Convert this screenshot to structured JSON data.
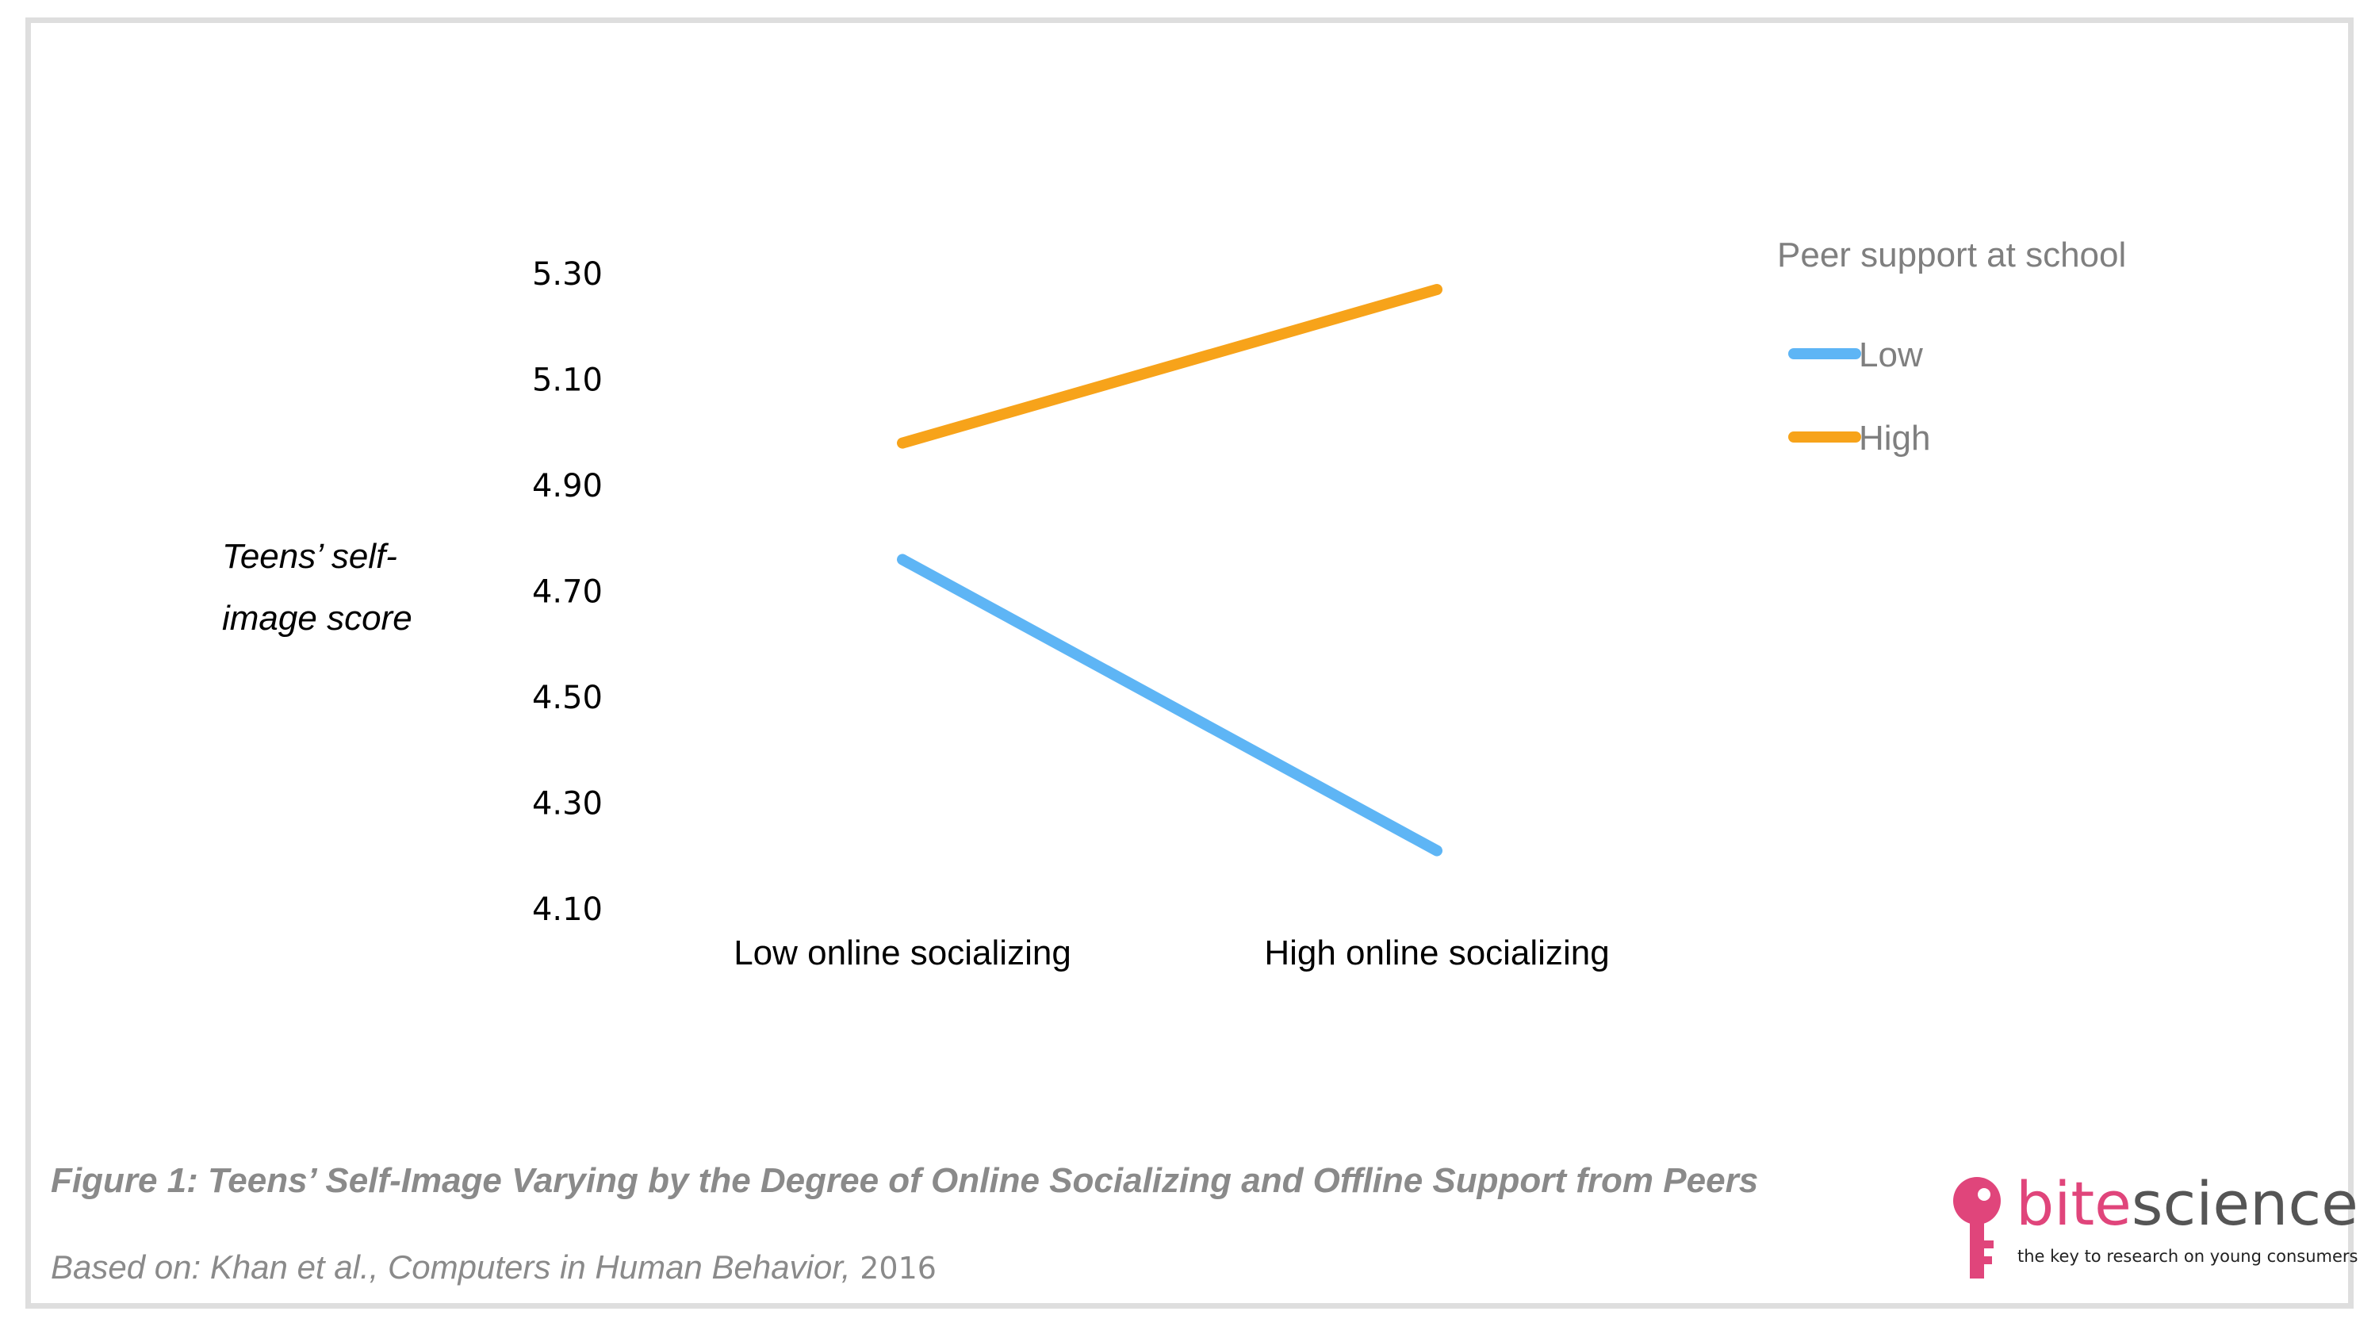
{
  "chart_data": {
    "type": "line",
    "categories": [
      "Low online socializing",
      "High online socializing"
    ],
    "series": [
      {
        "name": "Low",
        "values": [
          4.76,
          4.21
        ],
        "color": "#5eb5f5"
      },
      {
        "name": "High",
        "values": [
          4.98,
          5.27
        ],
        "color": "#f7a31a"
      }
    ],
    "ylabel_lines": [
      "Teens’ self-",
      "image score"
    ],
    "yticks": [
      "4.10",
      "4.30",
      "4.50",
      "4.70",
      "4.90",
      "5.10",
      "5.30"
    ],
    "ylim": [
      4.1,
      5.3
    ],
    "grid": false,
    "legend": {
      "title": "Peer support at school",
      "placement": "top-right"
    }
  },
  "caption": {
    "figure_title": "Figure 1: Teens’ Self-Image Varying by the Degree of Online Socializing and Offline Support from Peers",
    "source_prefix": "Based on: Khan et al., Computers in Human Behavior,",
    "source_year": "2016"
  },
  "logo": {
    "word_pink": "bite",
    "word_gray": "science",
    "tagline": "the key to research on young consumers",
    "key_icon": "key-icon",
    "pink": "#e0457b"
  }
}
